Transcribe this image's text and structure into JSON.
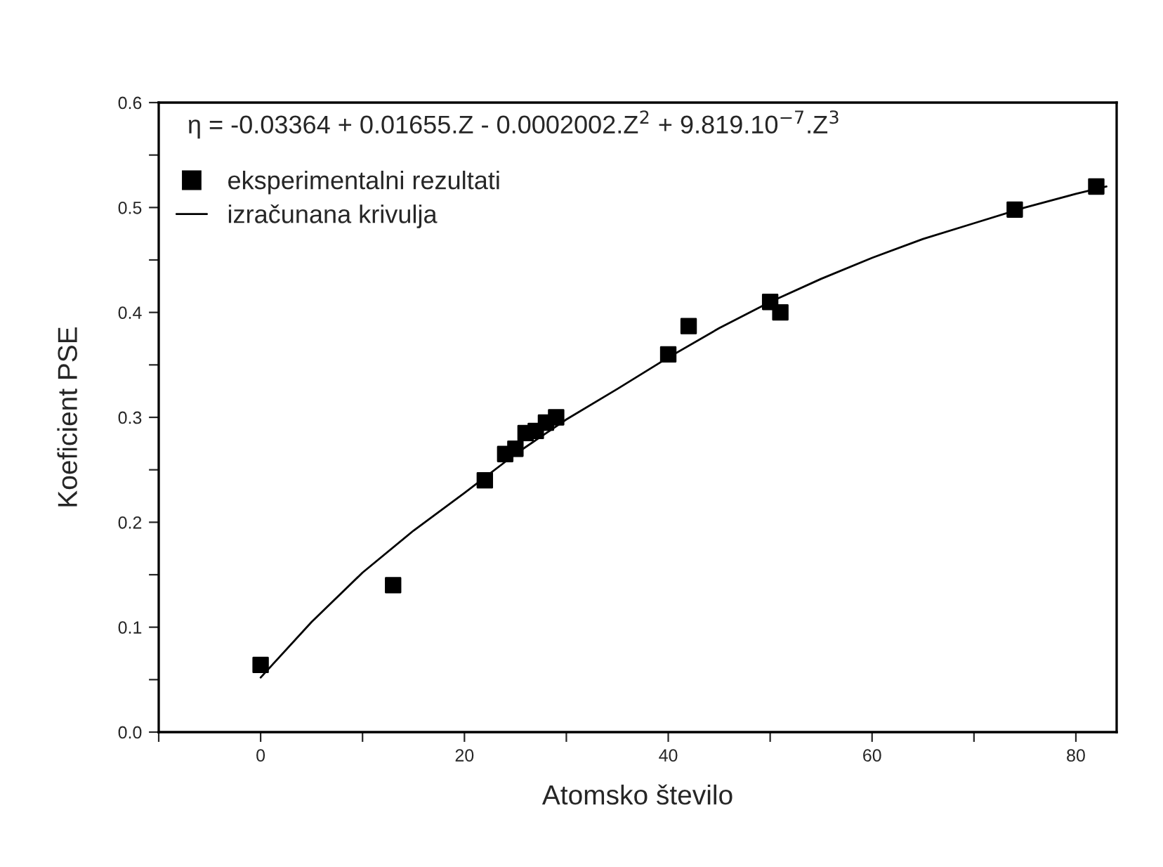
{
  "chart_data": {
    "type": "scatter",
    "xlabel": "Atomsko število",
    "ylabel": "Koeficient PSE",
    "series": [
      {
        "name": "eksperimentalni rezultati",
        "color": "#000000",
        "marker": "square",
        "x": [
          0,
          13,
          22,
          24,
          25,
          26,
          27,
          28,
          29,
          40,
          42,
          50,
          51,
          74,
          82
        ],
        "values": [
          0.064,
          0.14,
          0.24,
          0.265,
          0.27,
          0.285,
          0.287,
          0.295,
          0.3,
          0.36,
          0.387,
          0.41,
          0.4,
          0.498,
          0.52
        ]
      },
      {
        "name": "izračunana krivulja",
        "type": "line",
        "color": "#000000",
        "marker": "none",
        "line_style": "solid",
        "x": [
          0,
          5,
          10,
          15,
          20,
          25,
          30,
          35,
          40,
          45,
          50,
          55,
          60,
          65,
          70,
          75,
          80,
          83
        ],
        "values": [
          0.052,
          0.105,
          0.152,
          0.192,
          0.228,
          0.265,
          0.298,
          0.327,
          0.357,
          0.385,
          0.41,
          0.432,
          0.452,
          0.47,
          0.485,
          0.5,
          0.513,
          0.52
        ]
      }
    ],
    "annotations": [
      "η = -0.03364 + 0.01655.Z - 0.0002002.Z$^{2}$ + 9.819.10$^{−7}$.Z$^{3}$"
    ],
    "xlim": [
      -10,
      84
    ],
    "ylim": [
      0,
      0.6
    ],
    "xticks": [
      {
        "value": -10,
        "label": null
      },
      0,
      {
        "value": 10,
        "label": null
      },
      20,
      {
        "value": 30,
        "label": null
      },
      40,
      {
        "value": 50,
        "label": null
      },
      60,
      {
        "value": 70,
        "label": null
      },
      80
    ],
    "yticks": [
      {
        "value": 0,
        "label": "0.0"
      },
      {
        "value": 0.05,
        "label": null
      },
      0.1,
      {
        "value": 0.15,
        "label": null
      },
      0.2,
      {
        "value": 0.25,
        "label": null
      },
      0.3,
      {
        "value": 0.35,
        "label": null
      },
      0.4,
      {
        "value": 0.45,
        "label": null
      },
      0.5,
      {
        "value": 0.55,
        "label": null
      },
      0.6
    ],
    "legend": "top left",
    "grid": false
  }
}
